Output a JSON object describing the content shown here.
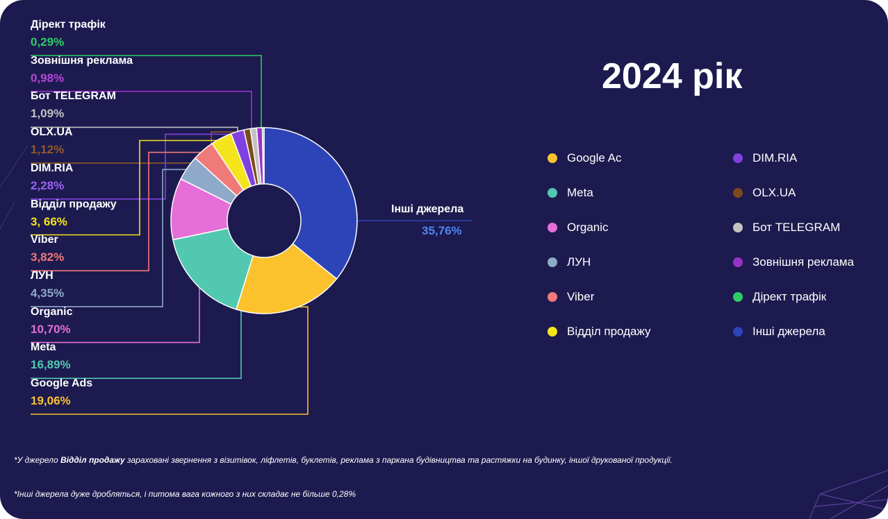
{
  "title": "2024 рік",
  "chart_data": {
    "type": "pie",
    "slices": [
      {
        "name": "Інші джерела",
        "label": "Інші джерела",
        "value_text": "35,76%",
        "value": 35.76,
        "color": "#2d44b8",
        "value_color": "#4f86f0"
      },
      {
        "name": "Google Ads",
        "label": "Google Ads",
        "value_text": "19,06%",
        "value": 19.06,
        "color": "#fbc22e",
        "value_color": "#fbc22e"
      },
      {
        "name": "Meta",
        "label": "Meta",
        "value_text": "16,89%",
        "value": 16.89,
        "color": "#52c8b1",
        "value_color": "#52c8b1"
      },
      {
        "name": "Organic",
        "label": "Organic",
        "value_text": "10,70%",
        "value": 10.7,
        "color": "#e56fd6",
        "value_color": "#e56fd6"
      },
      {
        "name": "ЛУН",
        "label": "ЛУН",
        "value_text": "4,35%",
        "value": 4.35,
        "color": "#8faac9",
        "value_color": "#8faac9"
      },
      {
        "name": "Viber",
        "label": "Viber",
        "value_text": "3,82%",
        "value": 3.82,
        "color": "#f07a7a",
        "value_color": "#f07a7a"
      },
      {
        "name": "Відділ продажу",
        "label": "Відділ продажу",
        "value_text": "3, 66%",
        "value": 3.66,
        "color": "#f4e51c",
        "value_color": "#f4e51c"
      },
      {
        "name": "DIM.RIA",
        "label": "DIM.RIA",
        "value_text": "2,28%",
        "value": 2.28,
        "color": "#8041e0",
        "value_color": "#9a63f0"
      },
      {
        "name": "OLX.UA",
        "label": "OLX.UA",
        "value_text": "1,12%",
        "value": 1.12,
        "color": "#7c4a1c",
        "value_color": "#8f5a2a"
      },
      {
        "name": "Бот TELEGRAM",
        "label": "Бот TELEGRAM",
        "value_text": "1,09%",
        "value": 1.09,
        "color": "#c2c2c2",
        "value_color": "#c2c2c2"
      },
      {
        "name": "Зовнішня реклама",
        "label": "Зовнішня реклама",
        "value_text": "0,98%",
        "value": 0.98,
        "color": "#9b31c9",
        "value_color": "#b246d6"
      },
      {
        "name": "Дірект трафік",
        "label": "Дірект трафік",
        "value_text": "0,29%",
        "value": 0.29,
        "color": "#2ecc65",
        "value_color": "#2ecc65"
      }
    ]
  },
  "legend": [
    {
      "label": "Google Ac",
      "color": "#fbc22e"
    },
    {
      "label": "Meta",
      "color": "#52c8b1"
    },
    {
      "label": "Organic",
      "color": "#e56fd6"
    },
    {
      "label": "ЛУН",
      "color": "#8faac9"
    },
    {
      "label": "Viber",
      "color": "#f07a7a"
    },
    {
      "label": "Відділ продажу",
      "color": "#f4e51c"
    },
    {
      "label": "DIM.RIA",
      "color": "#8041e0"
    },
    {
      "label": "OLX.UA",
      "color": "#7c4a1c"
    },
    {
      "label": "Бот TELEGRAM",
      "color": "#c2c2c2"
    },
    {
      "label": "Зовнішня реклама",
      "color": "#9b31c9"
    },
    {
      "label": "Дірект трафік",
      "color": "#2ecc65"
    },
    {
      "label": "Інші джерела",
      "color": "#2d44b8"
    }
  ],
  "footnotes": {
    "note1_prefix": "*У джерело ",
    "note1_bold": "Відділ продажу",
    "note1_suffix": " зараховані звернення з візитівок, ліфлетів, буклетів, реклама з паркана будівництва та растяжки на будинку, іншої друкованої продукції.",
    "note2": "*Інші джерела дуже дробляться, і питома вага кожного з них складає не більше 0,28%"
  },
  "colors": {
    "background": "#1d1a4f",
    "text": "#ffffff"
  }
}
